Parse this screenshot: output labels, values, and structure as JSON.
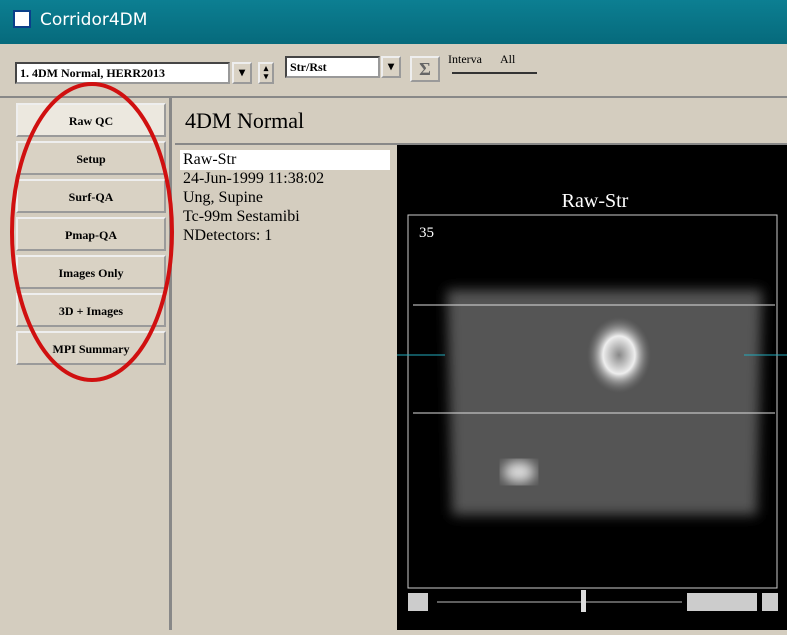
{
  "window": {
    "title": "Corridor4DM"
  },
  "toolbar": {
    "dataset": "1. 4DM Normal, HERR2013",
    "mode": "Str/Rst",
    "sum_button": "Σ",
    "interval_label": "Interva",
    "interval_value": "All"
  },
  "sidebar": {
    "buttons": [
      "Raw QC",
      "Setup",
      "Surf-QA",
      "Pmap-QA",
      "Images Only",
      "3D + Images",
      "MPI Summary"
    ]
  },
  "panel": {
    "title": "4DM Normal"
  },
  "info": {
    "items": [
      "Raw-Str",
      "24-Jun-1999 11:38:02",
      "Ung, Supine",
      "Tc-99m Sestamibi",
      "NDetectors: 1"
    ]
  },
  "viewer": {
    "title": "Raw-Str",
    "frame": "35"
  }
}
